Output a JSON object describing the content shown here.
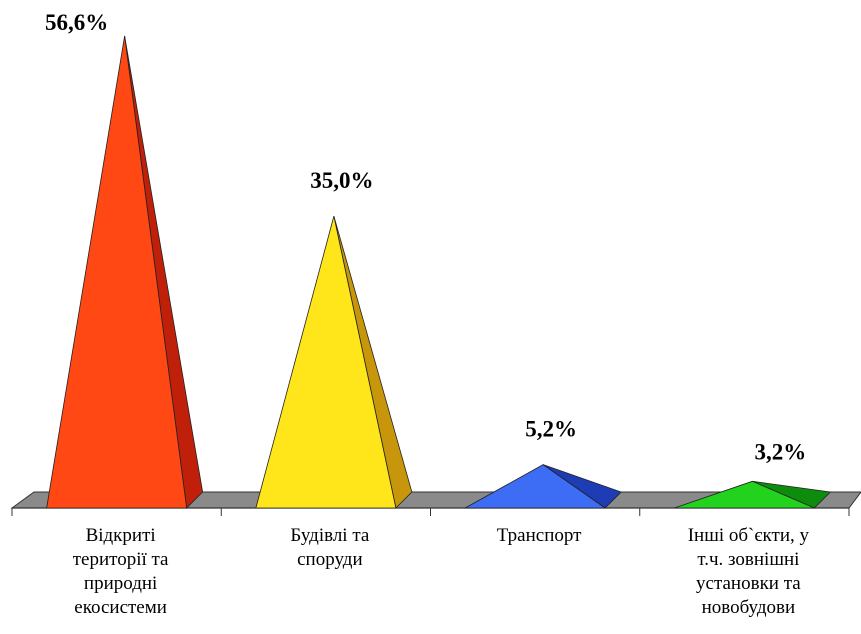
{
  "chart_data": {
    "type": "bar",
    "categories": [
      "Відкриті території та природні екосистеми",
      "Будівлі та споруди",
      "Транспорт",
      "Інші об`єкти, у т.ч. зовнішні установки та новобудови"
    ],
    "category_lines": [
      [
        "Відкриті",
        "території та",
        "природні",
        "екосистеми"
      ],
      [
        "Будівлі та",
        "споруди"
      ],
      [
        "Транспорт"
      ],
      [
        "Інші об`єкти, у",
        "т.ч. зовнішні",
        "установки та",
        "новобудови"
      ]
    ],
    "values": [
      56.6,
      35.0,
      5.2,
      3.2
    ],
    "value_labels": [
      "56,6%",
      "35,0%",
      "5,2%",
      "3,2%"
    ],
    "colors": [
      "#FF4813",
      "#FFE61A",
      "#3D6DF5",
      "#22D21C"
    ],
    "shade_colors": [
      "#C0200A",
      "#C8960A",
      "#1E3CB4",
      "#0E8C0E"
    ],
    "ylim": [
      0,
      56.6
    ],
    "grid": false,
    "legend": "none"
  }
}
